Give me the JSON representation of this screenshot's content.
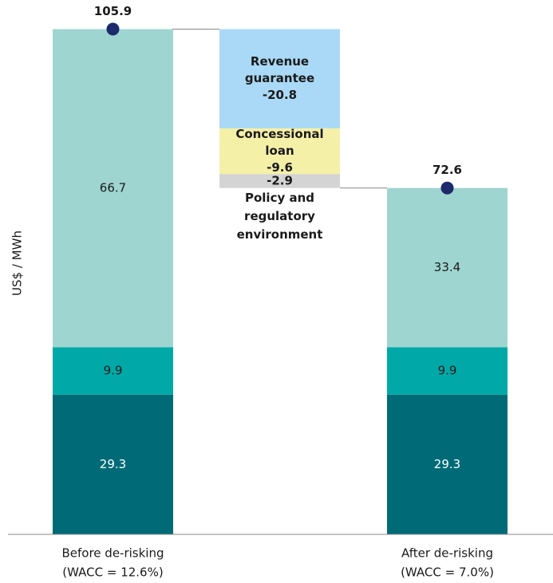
{
  "chart_data": {
    "type": "waterfall",
    "ylabel": "US$ / MWh",
    "ylim": [
      0,
      112
    ],
    "segment_colors": [
      "#006b77",
      "#00a9a8",
      "#9fd5d0"
    ],
    "start": {
      "label": [
        "Before de-risking",
        "(WACC = 12.6%)"
      ],
      "values": [
        29.3,
        9.9,
        66.7
      ],
      "total": 105.9
    },
    "steps": [
      {
        "label": [
          "Revenue",
          "guarantee"
        ],
        "value": -20.8,
        "color": "#a9d9f6"
      },
      {
        "label": [
          "Concessional",
          "loan"
        ],
        "value": -9.6,
        "color": "#f5f0a8"
      },
      {
        "label": [
          "Policy and",
          "regulatory",
          "environment"
        ],
        "value": -2.9,
        "color": "#d4d4d4"
      }
    ],
    "end": {
      "label": [
        "After de-risking",
        "(WACC = 7.0%)"
      ],
      "values": [
        29.3,
        9.9,
        33.4
      ],
      "total": 72.6
    },
    "marker_color": "#1b2a6b"
  }
}
